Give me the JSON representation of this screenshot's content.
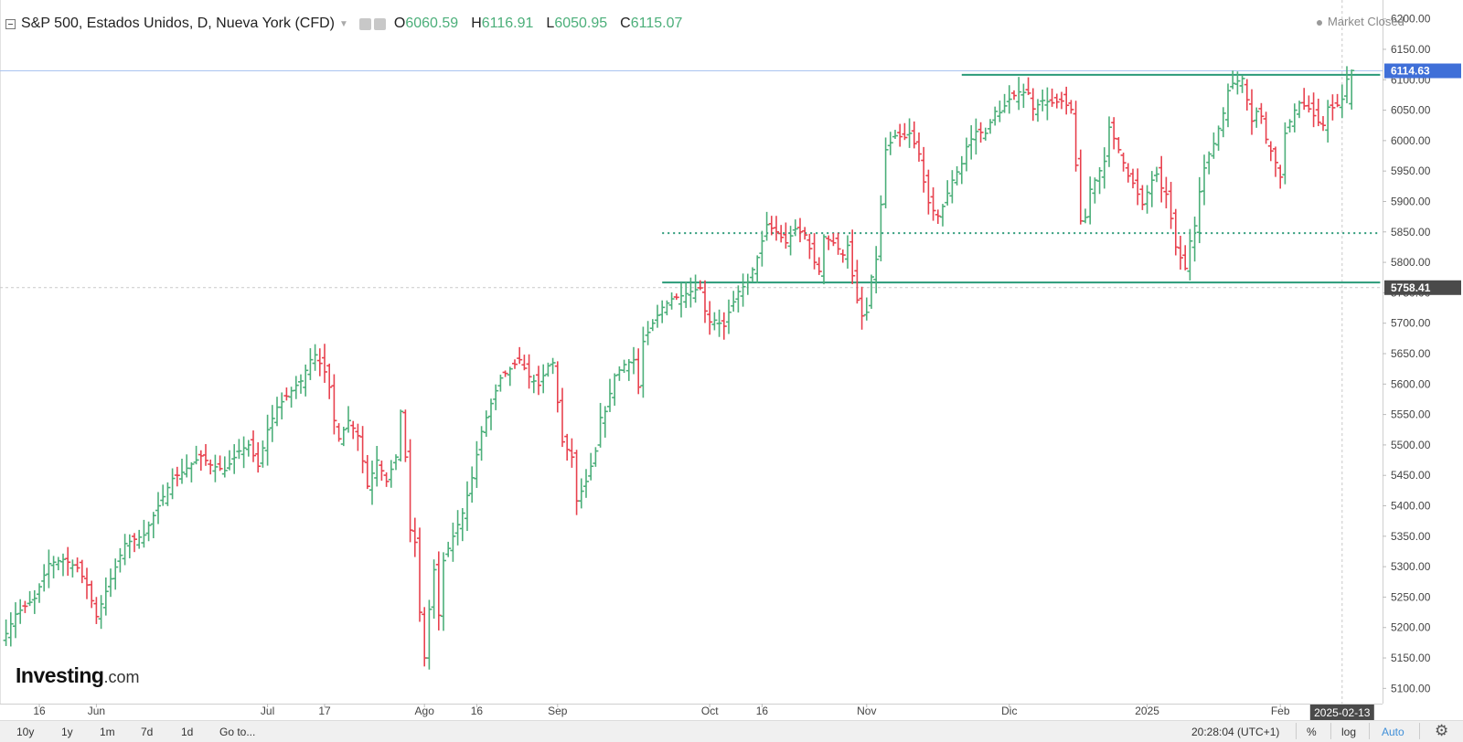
{
  "header": {
    "title": "S&P 500, Estados Unidos, D, Nueva York (CFD)",
    "ohlc": [
      {
        "label": "O",
        "value": "6060.59"
      },
      {
        "label": "H",
        "value": "6116.91"
      },
      {
        "label": "L",
        "value": "6050.95"
      },
      {
        "label": "C",
        "value": "6115.07"
      }
    ],
    "market_status": "Market Closed"
  },
  "logo": {
    "main": "Investing",
    "suffix": ".com"
  },
  "bottom_bar": {
    "ranges": [
      "10y",
      "1y",
      "1m",
      "7d",
      "1d",
      "Go to..."
    ],
    "clock": "20:28:04 (UTC+1)",
    "percent_label": "%",
    "log_label": "log",
    "auto_label": "Auto"
  },
  "colors": {
    "up": "#4caf7a",
    "down": "#e8424f",
    "accent": "#3f6fd8",
    "line": "#2a9a78",
    "crosshair": "#c9c9c9"
  },
  "chart_data": {
    "type": "ohlc",
    "ylim": [
      5075,
      6225
    ],
    "yticks": [
      5100,
      5150,
      5200,
      5250,
      5300,
      5350,
      5400,
      5450,
      5500,
      5550,
      5600,
      5650,
      5700,
      5750,
      5800,
      5850,
      5900,
      5950,
      6000,
      6050,
      6100,
      6150,
      6200
    ],
    "x_labels": [
      {
        "label": "16",
        "bar": 7
      },
      {
        "label": "Jun",
        "bar": 19
      },
      {
        "label": "Jul",
        "bar": 55
      },
      {
        "label": "17",
        "bar": 67
      },
      {
        "label": "Ago",
        "bar": 88
      },
      {
        "label": "16",
        "bar": 99
      },
      {
        "label": "Sep",
        "bar": 116
      },
      {
        "label": "Oct",
        "bar": 148
      },
      {
        "label": "16",
        "bar": 159
      },
      {
        "label": "Nov",
        "bar": 181
      },
      {
        "label": "Dic",
        "bar": 211
      },
      {
        "label": "2025",
        "bar": 240
      },
      {
        "label": "Feb",
        "bar": 268
      }
    ],
    "crosshair": {
      "date": "2025-02-13",
      "price": "5758.41",
      "bar": 281
    },
    "last_price": "6114.63",
    "hlines": [
      {
        "y": 6108,
        "style": "solid",
        "from_bar": 201,
        "to_bar": 289
      },
      {
        "y": 5848,
        "style": "dotted",
        "from_bar": 138,
        "to_bar": 289
      },
      {
        "y": 5767,
        "style": "solid",
        "from_bar": 138,
        "to_bar": 289
      }
    ],
    "anchors": [
      [
        0,
        5190
      ],
      [
        2,
        5222
      ],
      [
        6,
        5248
      ],
      [
        9,
        5305
      ],
      [
        12,
        5312
      ],
      [
        15,
        5298
      ],
      [
        17,
        5270
      ],
      [
        19,
        5218
      ],
      [
        22,
        5280
      ],
      [
        25,
        5338
      ],
      [
        29,
        5352
      ],
      [
        32,
        5400
      ],
      [
        35,
        5445
      ],
      [
        37,
        5455
      ],
      [
        41,
        5482
      ],
      [
        43,
        5467
      ],
      [
        46,
        5458
      ],
      [
        49,
        5490
      ],
      [
        51,
        5500
      ],
      [
        53,
        5465
      ],
      [
        55,
        5525
      ],
      [
        57,
        5562
      ],
      [
        59,
        5580
      ],
      [
        61,
        5598
      ],
      [
        62,
        5605
      ],
      [
        64,
        5640
      ],
      [
        65,
        5648
      ],
      [
        67,
        5620
      ],
      [
        68,
        5595
      ],
      [
        69,
        5540
      ],
      [
        70,
        5510
      ],
      [
        72,
        5540
      ],
      [
        74,
        5515
      ],
      [
        76,
        5432
      ],
      [
        78,
        5475
      ],
      [
        80,
        5440
      ],
      [
        82,
        5480
      ],
      [
        83,
        5555
      ],
      [
        84,
        5480
      ],
      [
        85,
        5360
      ],
      [
        86,
        5340
      ],
      [
        87,
        5225
      ],
      [
        88,
        5150
      ],
      [
        89,
        5230
      ],
      [
        90,
        5295
      ],
      [
        91,
        5220
      ],
      [
        92,
        5310
      ],
      [
        94,
        5350
      ],
      [
        96,
        5388
      ],
      [
        98,
        5446
      ],
      [
        100,
        5522
      ],
      [
        102,
        5568
      ],
      [
        104,
        5610
      ],
      [
        106,
        5625
      ],
      [
        108,
        5640
      ],
      [
        110,
        5612
      ],
      [
        112,
        5598
      ],
      [
        114,
        5630
      ],
      [
        115,
        5635
      ],
      [
        117,
        5505
      ],
      [
        119,
        5480
      ],
      [
        120,
        5408
      ],
      [
        122,
        5440
      ],
      [
        124,
        5490
      ],
      [
        125,
        5545
      ],
      [
        126,
        5555
      ],
      [
        128,
        5614
      ],
      [
        130,
        5632
      ],
      [
        132,
        5640
      ],
      [
        133,
        5595
      ],
      [
        134,
        5670
      ],
      [
        136,
        5700
      ],
      [
        138,
        5726
      ],
      [
        140,
        5740
      ],
      [
        142,
        5745
      ],
      [
        144,
        5752
      ],
      [
        146,
        5758
      ],
      [
        147,
        5720
      ],
      [
        148,
        5702
      ],
      [
        149,
        5705
      ],
      [
        151,
        5695
      ],
      [
        152,
        5718
      ],
      [
        154,
        5752
      ],
      [
        156,
        5768
      ],
      [
        158,
        5808
      ],
      [
        160,
        5862
      ],
      [
        162,
        5850
      ],
      [
        164,
        5832
      ],
      [
        166,
        5855
      ],
      [
        168,
        5845
      ],
      [
        170,
        5800
      ],
      [
        171,
        5785
      ],
      [
        172,
        5842
      ],
      [
        174,
        5832
      ],
      [
        176,
        5812
      ],
      [
        177,
        5828
      ],
      [
        178,
        5778
      ],
      [
        179,
        5738
      ],
      [
        180,
        5712
      ],
      [
        181,
        5718
      ],
      [
        182,
        5776
      ],
      [
        183,
        5805
      ],
      [
        184,
        5895
      ],
      [
        185,
        5985
      ],
      [
        187,
        6008
      ],
      [
        189,
        6005
      ],
      [
        190,
        6012
      ],
      [
        192,
        5978
      ],
      [
        193,
        5932
      ],
      [
        194,
        5898
      ],
      [
        195,
        5885
      ],
      [
        196,
        5876
      ],
      [
        197,
        5892
      ],
      [
        199,
        5935
      ],
      [
        201,
        5962
      ],
      [
        202,
        5990
      ],
      [
        204,
        6015
      ],
      [
        206,
        6012
      ],
      [
        208,
        6048
      ],
      [
        209,
        6046
      ],
      [
        211,
        6068
      ],
      [
        213,
        6080
      ],
      [
        215,
        6078
      ],
      [
        216,
        6052
      ],
      [
        218,
        6066
      ],
      [
        220,
        6062
      ],
      [
        222,
        6065
      ],
      [
        224,
        6051
      ],
      [
        226,
        5868
      ],
      [
        227,
        5874
      ],
      [
        228,
        5920
      ],
      [
        229,
        5935
      ],
      [
        231,
        5966
      ],
      [
        232,
        6022
      ],
      [
        234,
        5985
      ],
      [
        236,
        5942
      ],
      [
        237,
        5930
      ],
      [
        238,
        5912
      ],
      [
        239,
        5895
      ],
      [
        241,
        5935
      ],
      [
        242,
        5945
      ],
      [
        243,
        5922
      ],
      [
        244,
        5912
      ],
      [
        245,
        5872
      ],
      [
        246,
        5825
      ],
      [
        248,
        5790
      ],
      [
        249,
        5835
      ],
      [
        250,
        5860
      ],
      [
        251,
        5916
      ],
      [
        252,
        5955
      ],
      [
        253,
        5978
      ],
      [
        254,
        5995
      ],
      [
        256,
        6045
      ],
      [
        257,
        6082
      ],
      [
        258,
        6094
      ],
      [
        259,
        6098
      ],
      [
        260,
        6102
      ],
      [
        262,
        6032
      ],
      [
        263,
        6048
      ],
      [
        264,
        6040
      ],
      [
        265,
        6002
      ],
      [
        267,
        5964
      ],
      [
        268,
        5940
      ],
      [
        269,
        6012
      ],
      [
        271,
        6050
      ],
      [
        272,
        6062
      ],
      [
        274,
        6052
      ],
      [
        276,
        6030
      ],
      [
        277,
        6025
      ],
      [
        278,
        6055
      ],
      [
        279,
        6054
      ],
      [
        280,
        6058
      ],
      [
        281,
        6068
      ],
      [
        282,
        6101
      ],
      [
        283,
        6115
      ]
    ]
  }
}
